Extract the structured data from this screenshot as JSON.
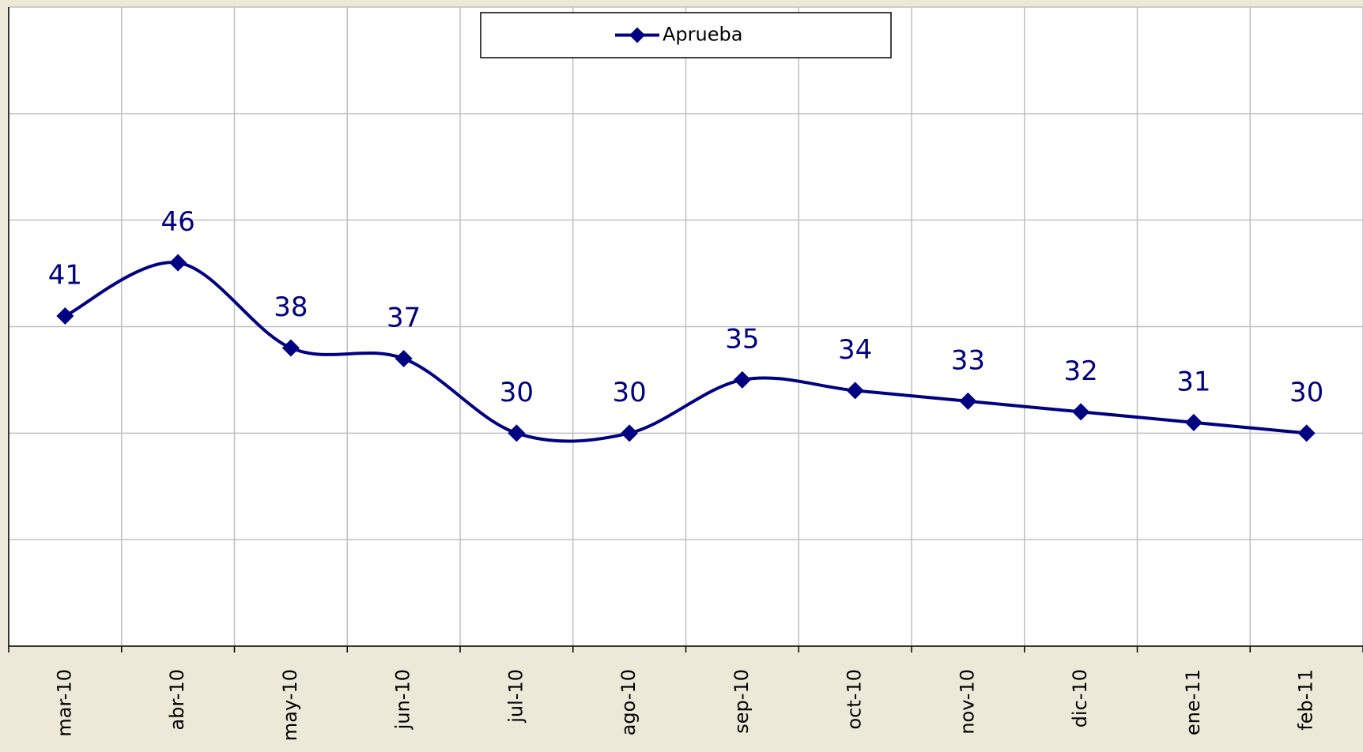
{
  "chart_data": {
    "type": "line",
    "categories": [
      "mar-10",
      "abr-10",
      "may-10",
      "jun-10",
      "jul-10",
      "ago-10",
      "sep-10",
      "oct-10",
      "nov-10",
      "dic-10",
      "ene-11",
      "feb-11"
    ],
    "series": [
      {
        "name": "Aprueba",
        "color": "#000080",
        "values": [
          41,
          46,
          38,
          37,
          30,
          30,
          35,
          34,
          33,
          32,
          31,
          30
        ]
      }
    ],
    "ylim": [
      10,
      70
    ],
    "yticks": [
      10,
      20,
      30,
      40,
      50,
      60,
      70
    ],
    "grid": true,
    "legend": "top"
  }
}
